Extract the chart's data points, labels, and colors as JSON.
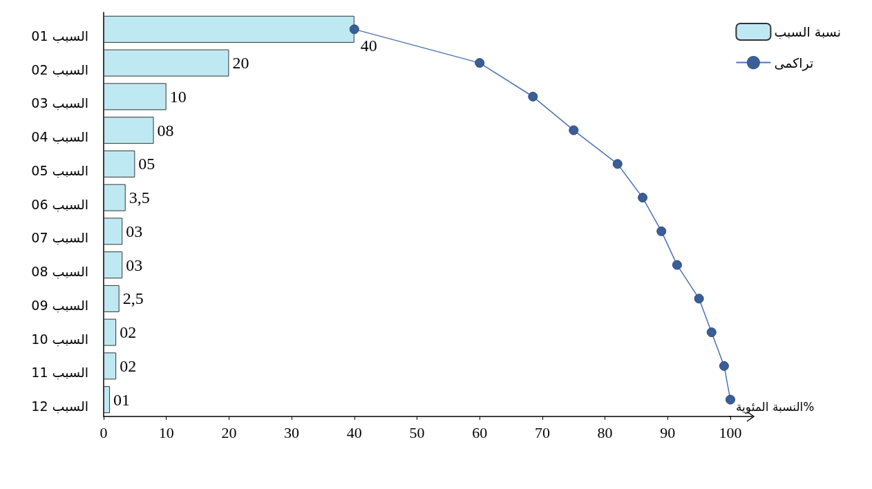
{
  "chart_data": {
    "type": "bar",
    "orientation": "horizontal",
    "xlabel": "النسبة المئوية%",
    "categories": [
      "السبب 01",
      "السبب 02",
      "السبب 03",
      "السبب 04",
      "السبب 05",
      "السبب 06",
      "السبب 07",
      "السبب 08",
      "السبب 09",
      "السبب 10",
      "السبب 11",
      "السبب 12"
    ],
    "series": [
      {
        "name": "نسبة السبب",
        "type": "bar",
        "color": "#bfe9f2",
        "values": [
          40,
          20,
          10,
          8,
          5,
          3.5,
          3,
          3,
          2.5,
          2,
          2,
          1
        ],
        "value_labels": [
          "40",
          "20",
          "10",
          "08",
          "05",
          "3,5",
          "03",
          "03",
          "2,5",
          "02",
          "02",
          "01"
        ]
      },
      {
        "name": "تراكمى",
        "type": "line",
        "color": "#4a72b0",
        "values": [
          40,
          60,
          68.5,
          75,
          82,
          86,
          89,
          91.5,
          95,
          97,
          99,
          100
        ]
      }
    ],
    "xlim": [
      0,
      100
    ],
    "xticks": [
      0,
      10,
      20,
      30,
      40,
      50,
      60,
      70,
      80,
      90,
      100
    ],
    "legend": "top right",
    "marker": "circle",
    "line_style": "solid",
    "grid": false
  }
}
